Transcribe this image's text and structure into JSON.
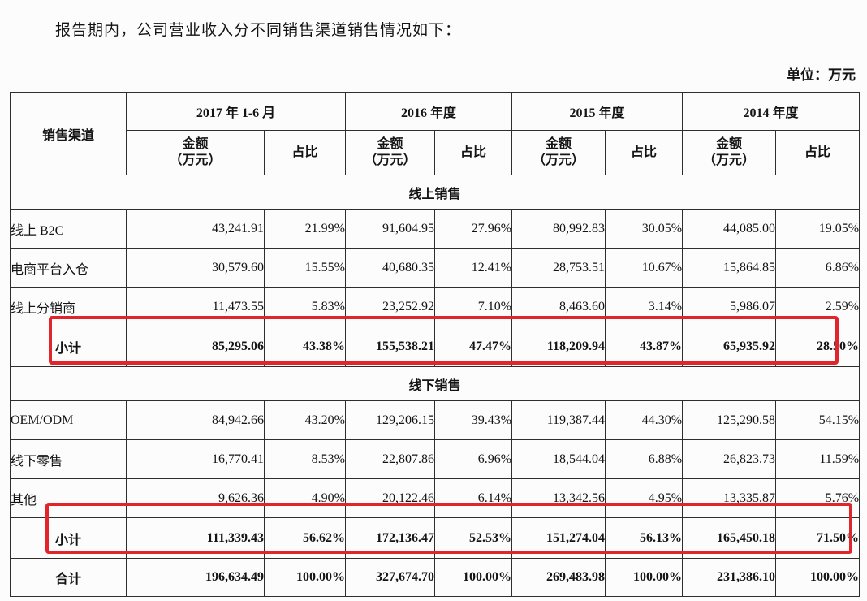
{
  "page": {
    "intro": "报告期内，公司营业收入分不同销售渠道销售情况如下：",
    "unit_label": "单位：万元"
  },
  "table": {
    "channel_header": "销售渠道",
    "periods": [
      {
        "label": "2017 年 1-6 月",
        "amount_line1": "金额",
        "amount_line2": "（万元）",
        "ratio_header": "占比"
      },
      {
        "label": "2016 年度",
        "amount_line1": "金额",
        "amount_line2": "（万元）",
        "ratio_header": "占比"
      },
      {
        "label": "2015 年度",
        "amount_line1": "金额",
        "amount_line2": "（万元）",
        "ratio_header": "占比"
      },
      {
        "label": "2014 年度",
        "amount_line1": "金额",
        "amount_line2": "（万元）",
        "ratio_header": "占比"
      }
    ],
    "sections": [
      {
        "title": "线上销售",
        "rows": [
          {
            "name": "线上 B2C",
            "values": [
              "43,241.91",
              "21.99%",
              "91,604.95",
              "27.96%",
              "80,992.83",
              "30.05%",
              "44,085.00",
              "19.05%"
            ]
          },
          {
            "name": "电商平台入仓",
            "values": [
              "30,579.60",
              "15.55%",
              "40,680.35",
              "12.41%",
              "28,753.51",
              "10.67%",
              "15,864.85",
              "6.86%"
            ]
          },
          {
            "name": "线上分销商",
            "values": [
              "11,473.55",
              "5.83%",
              "23,252.92",
              "7.10%",
              "8,463.60",
              "3.14%",
              "5,986.07",
              "2.59%"
            ]
          }
        ],
        "subtotal": {
          "name": "小计",
          "values": [
            "85,295.06",
            "43.38%",
            "155,538.21",
            "47.47%",
            "118,209.94",
            "43.87%",
            "65,935.92",
            "28.50%"
          ]
        }
      },
      {
        "title": "线下销售",
        "rows": [
          {
            "name": "OEM/ODM",
            "values": [
              "84,942.66",
              "43.20%",
              "129,206.15",
              "39.43%",
              "119,387.44",
              "44.30%",
              "125,290.58",
              "54.15%"
            ]
          },
          {
            "name": "线下零售",
            "values": [
              "16,770.41",
              "8.53%",
              "22,807.86",
              "6.96%",
              "18,544.04",
              "6.88%",
              "26,823.73",
              "11.59%"
            ]
          },
          {
            "name": "其他",
            "values": [
              "9,626.36",
              "4.90%",
              "20,122.46",
              "6.14%",
              "13,342.56",
              "4.95%",
              "13,335.87",
              "5.76%"
            ]
          }
        ],
        "subtotal": {
          "name": "小计",
          "values": [
            "111,339.43",
            "56.62%",
            "172,136.47",
            "52.53%",
            "151,274.04",
            "56.13%",
            "165,450.18",
            "71.50%"
          ]
        }
      }
    ],
    "total": {
      "name": "合计",
      "values": [
        "196,634.49",
        "100.00%",
        "327,674.70",
        "100.00%",
        "269,483.98",
        "100.00%",
        "231,386.10",
        "100.00%"
      ]
    },
    "highlight_color": "#e1252b"
  }
}
